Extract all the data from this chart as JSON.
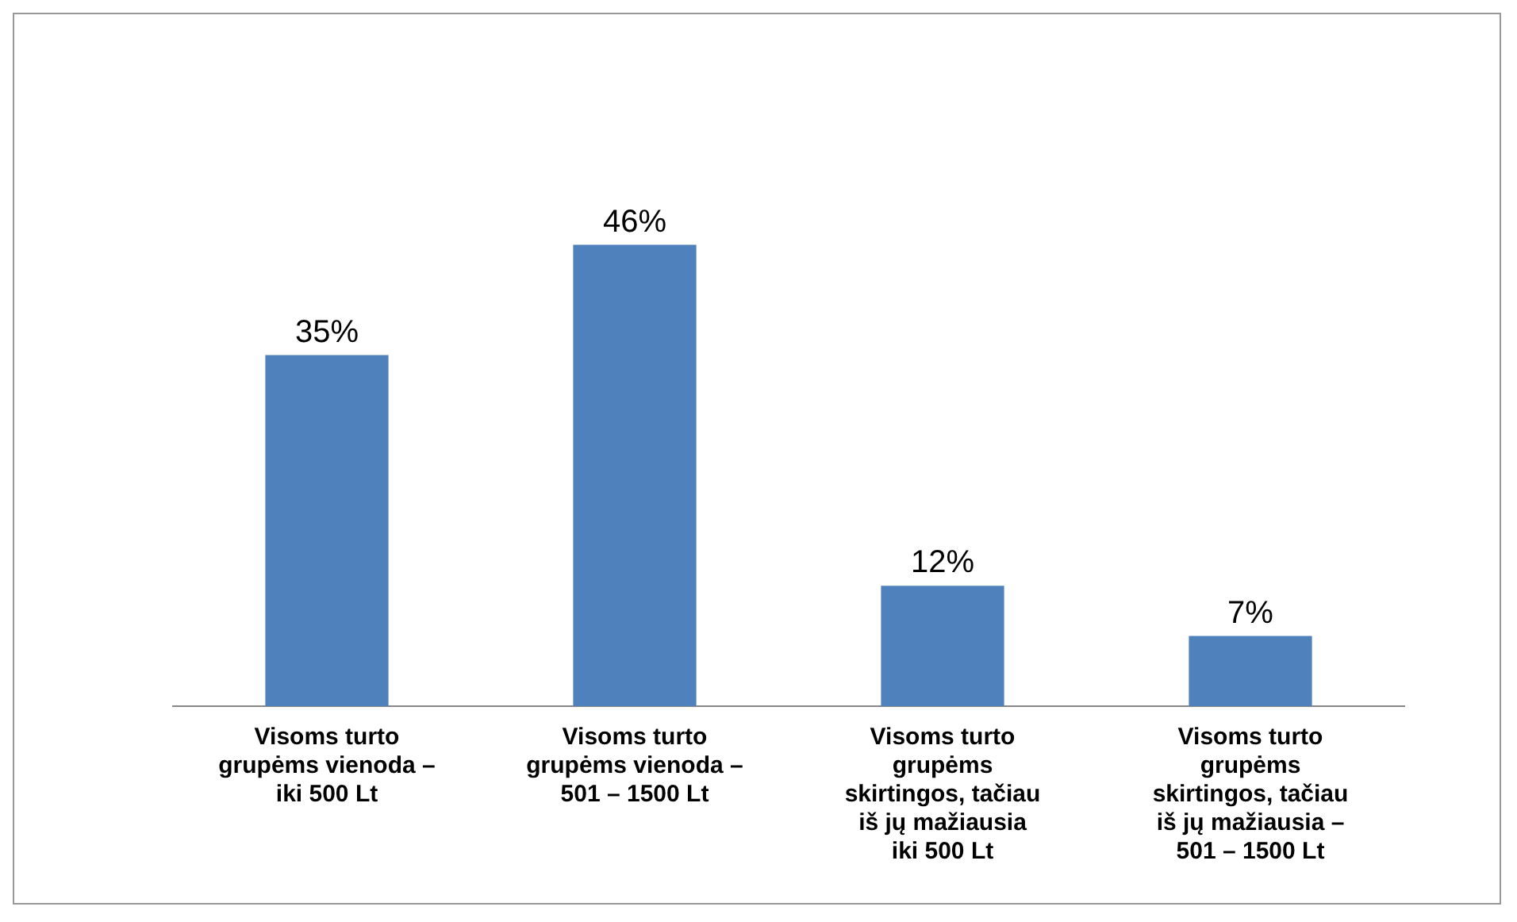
{
  "chart_data": {
    "type": "bar",
    "categories": [
      "Visoms turto grupėms vienoda – iki 500 Lt",
      "Visoms turto grupėms vienoda – 501 – 1500 Lt",
      "Visoms turto grupėms skirtingos, tačiau iš jų mažiausia iki 500 Lt",
      "Visoms turto grupėms skirtingos, tačiau iš jų mažiausia – 501 – 1500 Lt"
    ],
    "values": [
      35,
      46,
      12,
      7
    ],
    "value_labels": [
      "35%",
      "46%",
      "12%",
      "7%"
    ],
    "color": "#4f81bd",
    "grid": false,
    "legend": false
  }
}
